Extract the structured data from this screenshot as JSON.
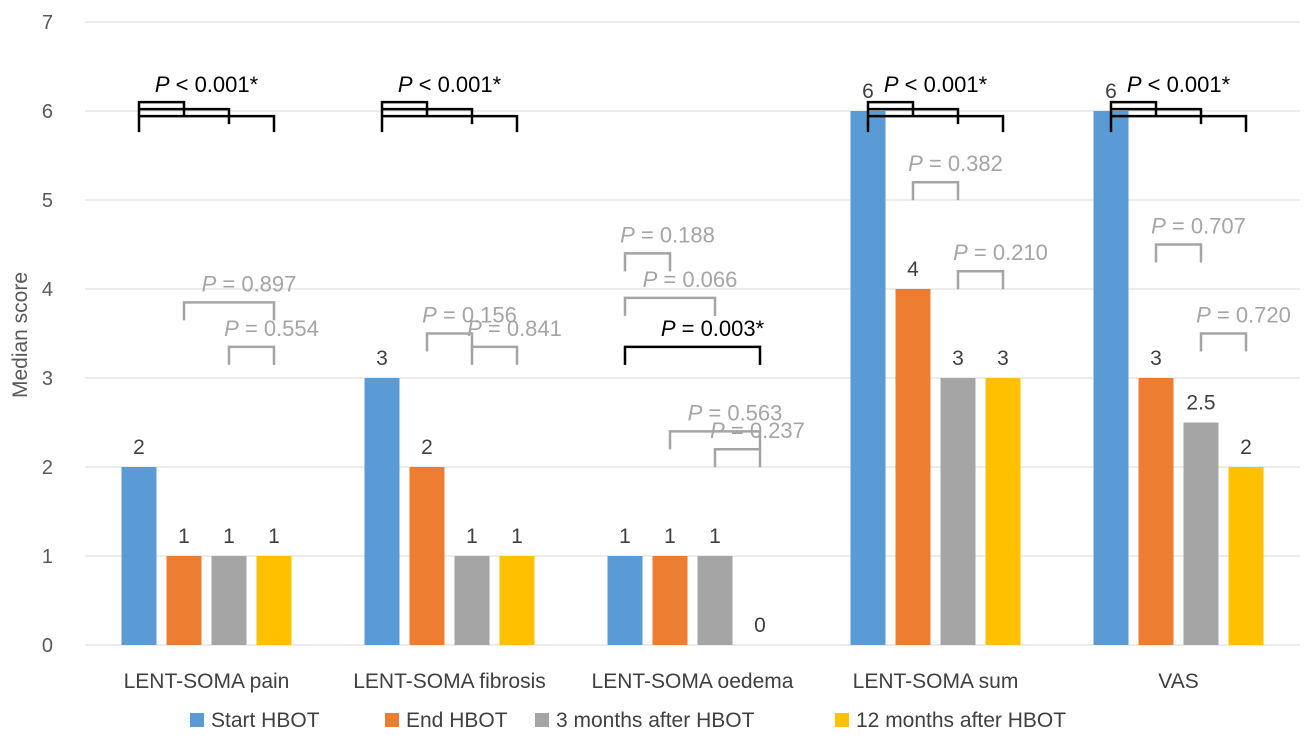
{
  "chart_data": {
    "type": "bar",
    "ylabel": "Median score",
    "ylim": [
      0,
      7
    ],
    "yticks": [
      "0",
      "1",
      "2",
      "3",
      "4",
      "5",
      "6",
      "7"
    ],
    "grid": true,
    "legend_position": "bottom",
    "categories": [
      "LENT-SOMA pain",
      "LENT-SOMA fibrosis",
      "LENT-SOMA oedema",
      "LENT-SOMA sum",
      "VAS"
    ],
    "series": [
      {
        "name": "Start HBOT",
        "color": "#5B9BD5",
        "values": [
          2,
          3,
          1,
          6,
          6
        ],
        "labels": [
          "2",
          "3",
          "1",
          "6",
          "6"
        ]
      },
      {
        "name": "End HBOT",
        "color": "#ED7D31",
        "values": [
          1,
          2,
          1,
          4,
          3
        ],
        "labels": [
          "1",
          "2",
          "1",
          "4",
          "3"
        ]
      },
      {
        "name": "3 months after HBOT",
        "color": "#A5A5A5",
        "values": [
          1,
          1,
          1,
          3,
          2.5
        ],
        "labels": [
          "1",
          "1",
          "1",
          "3",
          "2.5"
        ]
      },
      {
        "name": "12 months after HBOT",
        "color": "#FFC000",
        "values": [
          1,
          1,
          0,
          3,
          2
        ],
        "labels": [
          "1",
          "1",
          "0",
          "3",
          "2"
        ]
      }
    ],
    "annotations": [
      {
        "category": 0,
        "type": "multi",
        "level": 6.1,
        "rest": "< 0.001*",
        "significant": true
      },
      {
        "category": 0,
        "type": "pair",
        "from": 1,
        "to": 3,
        "level": 3.85,
        "rest": "= 0.897",
        "significant": false
      },
      {
        "category": 0,
        "type": "pair",
        "from": 2,
        "to": 3,
        "level": 3.35,
        "rest": "= 0.554",
        "significant": false
      },
      {
        "category": 1,
        "type": "multi",
        "level": 6.1,
        "rest": "< 0.001*",
        "significant": true
      },
      {
        "category": 1,
        "type": "pair",
        "from": 1,
        "to": 2,
        "level": 3.5,
        "rest": "= 0.156",
        "significant": false
      },
      {
        "category": 1,
        "type": "pair",
        "from": 2,
        "to": 3,
        "level": 3.35,
        "rest": "= 0.841",
        "significant": false
      },
      {
        "category": 2,
        "type": "pair",
        "from": 0,
        "to": 1,
        "level": 4.4,
        "rest": "= 0.188",
        "significant": false
      },
      {
        "category": 2,
        "type": "pair",
        "from": 0,
        "to": 2,
        "level": 3.9,
        "rest": "= 0.066",
        "significant": false
      },
      {
        "category": 2,
        "type": "pair",
        "from": 0,
        "to": 3,
        "level": 3.35,
        "rest": "= 0.003*",
        "significant": true
      },
      {
        "category": 2,
        "type": "pair",
        "from": 1,
        "to": 3,
        "level": 2.4,
        "rest": "= 0.563",
        "significant": false
      },
      {
        "category": 2,
        "type": "pair",
        "from": 2,
        "to": 3,
        "level": 2.2,
        "rest": "= 0.237",
        "significant": false
      },
      {
        "category": 3,
        "type": "multi",
        "level": 6.1,
        "rest": "< 0.001*",
        "significant": true
      },
      {
        "category": 3,
        "type": "pair",
        "from": 1,
        "to": 2,
        "level": 5.2,
        "rest": "= 0.382",
        "significant": false
      },
      {
        "category": 3,
        "type": "pair",
        "from": 2,
        "to": 3,
        "level": 4.2,
        "rest": "= 0.210",
        "significant": false
      },
      {
        "category": 4,
        "type": "multi",
        "level": 6.1,
        "rest": "< 0.001*",
        "significant": true
      },
      {
        "category": 4,
        "type": "pair",
        "from": 1,
        "to": 2,
        "level": 4.5,
        "rest": "= 0.707",
        "significant": false
      },
      {
        "category": 4,
        "type": "pair",
        "from": 2,
        "to": 3,
        "level": 3.5,
        "rest": "= 0.720",
        "significant": false
      }
    ],
    "p_symbol": "P",
    "colors": {
      "significant": "#000000",
      "nonsignificant": "#A5A5A5",
      "grid": "#D9D9D9"
    }
  }
}
